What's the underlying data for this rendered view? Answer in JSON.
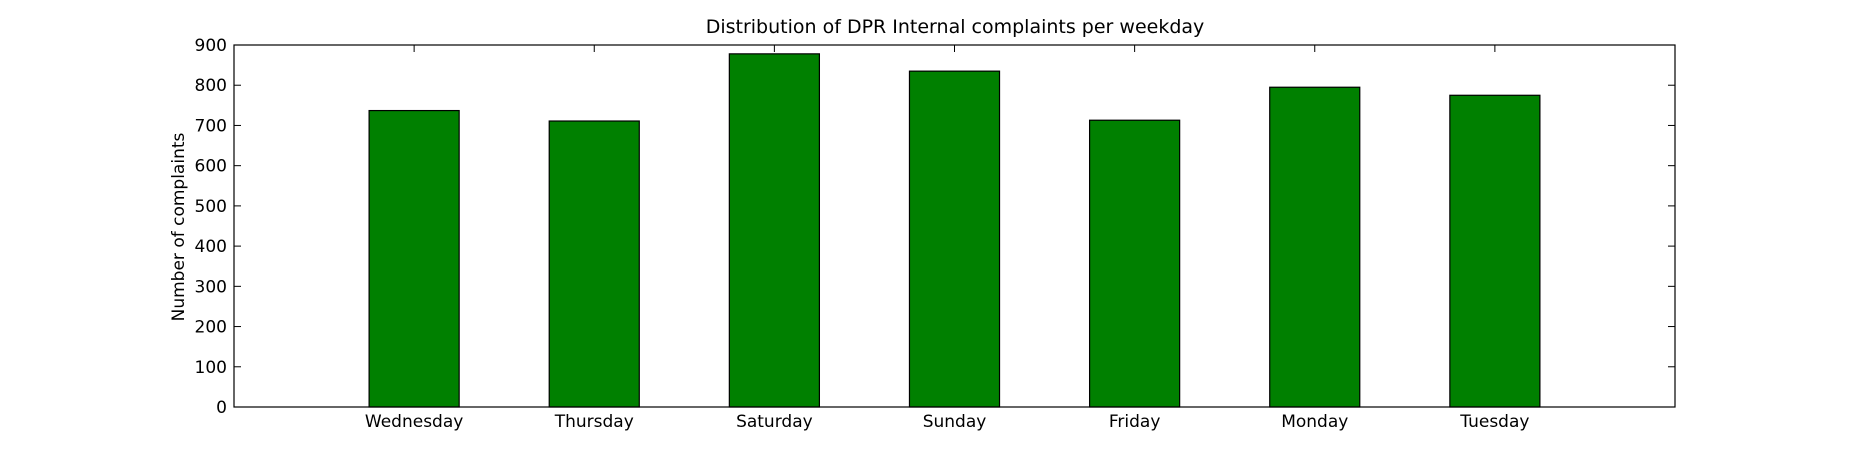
{
  "chart_data": {
    "type": "bar",
    "title": "Distribution of  DPR Internal complaints per weekday",
    "xlabel": "",
    "ylabel": "Number of complaints",
    "categories": [
      "Wednesday",
      "Thursday",
      "Saturday",
      "Sunday",
      "Friday",
      "Monday",
      "Tuesday"
    ],
    "values": [
      737,
      711,
      878,
      835,
      713,
      795,
      775
    ],
    "ylim": [
      0,
      900
    ],
    "yticks": [
      0,
      100,
      200,
      300,
      400,
      500,
      600,
      700,
      800,
      900
    ],
    "bar_color": "#008000",
    "edge_color": "#000000",
    "grid": false,
    "legend": false
  }
}
